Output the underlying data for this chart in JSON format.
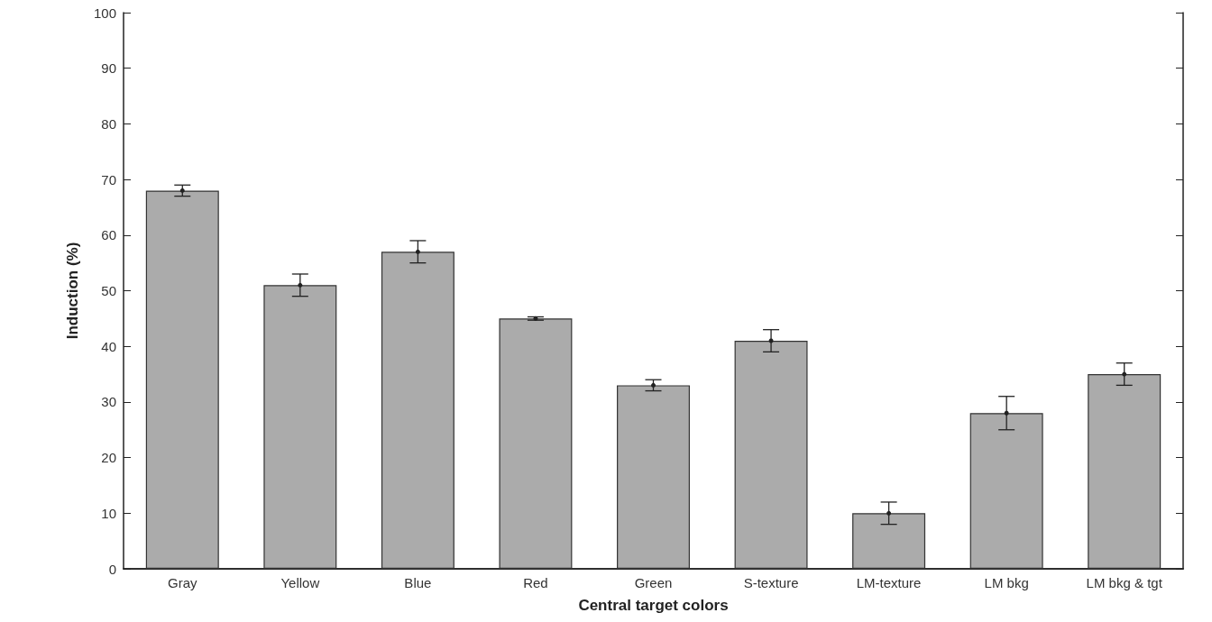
{
  "chart_data": {
    "type": "bar",
    "xlabel": "Central target colors",
    "ylabel": "Induction (%)",
    "categories": [
      "Gray",
      "Yellow",
      "Blue",
      "Red",
      "Green",
      "S-texture",
      "LM-texture",
      "LM bkg",
      "LM bkg & tgt"
    ],
    "values": [
      68,
      51,
      57,
      45,
      33,
      41,
      10,
      28,
      35
    ],
    "errors": [
      1,
      2,
      2,
      0.3,
      1,
      2,
      2,
      3,
      2
    ],
    "color": "#ababab",
    "ylim": [
      0,
      100
    ],
    "yticks": [
      0,
      10,
      20,
      30,
      40,
      50,
      60,
      70,
      80,
      90,
      100
    ],
    "grid": false
  }
}
